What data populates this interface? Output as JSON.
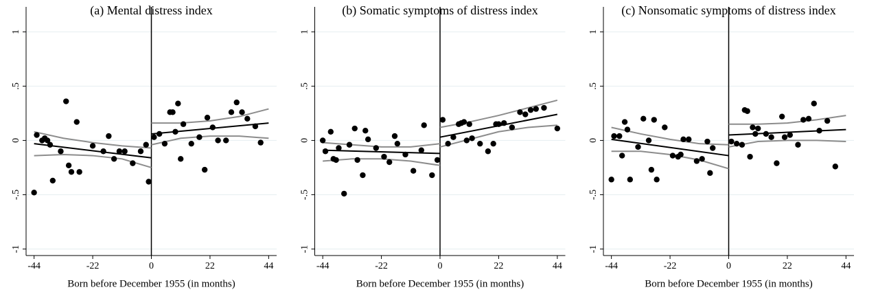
{
  "chart_data": [
    {
      "type": "scatter",
      "title": "(a) Mental distress index",
      "x_label": "Born before December 1955 (in months)",
      "color": "#000000",
      "ci_color": "#8c8c8c",
      "grid": true,
      "cutoff": 0,
      "xlim": [
        -47,
        47
      ],
      "ylim": [
        -1.06,
        1.23
      ],
      "xticks": [
        -44,
        -22,
        0,
        22,
        44
      ],
      "yticks": [
        -1,
        {
          "value": -0.5,
          "label": "-.5"
        },
        0,
        {
          "value": 0.5,
          "label": ".5"
        },
        1
      ],
      "x": [
        -44,
        -43,
        -41,
        -40,
        -39,
        -38,
        -37,
        -34,
        -32,
        -31,
        -30,
        -28,
        -27,
        -22,
        -18,
        -16,
        -14,
        -12,
        -10,
        -7,
        -4,
        -2,
        -1,
        1,
        3,
        5,
        7,
        8,
        9,
        10,
        11,
        12,
        15,
        18,
        20,
        21,
        23,
        25,
        28,
        30,
        32,
        34,
        36,
        39,
        41
      ],
      "values": [
        -0.48,
        0.05,
        0,
        0.02,
        0,
        -0.04,
        -0.37,
        -0.1,
        0.36,
        -0.23,
        -0.29,
        0.17,
        -0.29,
        -0.05,
        -0.1,
        0.04,
        -0.17,
        -0.1,
        -0.1,
        -0.21,
        -0.1,
        -0.04,
        -0.38,
        0.03,
        0.06,
        -0.03,
        0.26,
        0.26,
        0.08,
        0.34,
        -0.17,
        0.15,
        -0.03,
        0.03,
        -0.27,
        0.21,
        0.12,
        0,
        0,
        0.26,
        0.35,
        0.26,
        0.2,
        0.13,
        -0.02
      ],
      "fit_lines": [
        {
          "x": [
            -44,
            0
          ],
          "values": [
            -0.03,
            -0.16
          ]
        },
        {
          "x": [
            0,
            44
          ],
          "values": [
            0.06,
            0.16
          ]
        }
      ],
      "ci_bands": [
        {
          "x": [
            -44,
            -33,
            -22,
            -11,
            0
          ],
          "upper": [
            0.08,
            0.02,
            -0.02,
            -0.05,
            -0.07
          ],
          "lower": [
            -0.14,
            -0.13,
            -0.14,
            -0.17,
            -0.25
          ]
        },
        {
          "x": [
            0,
            11,
            22,
            33,
            44
          ],
          "upper": [
            0.16,
            0.16,
            0.18,
            0.22,
            0.29
          ],
          "lower": [
            -0.04,
            0.02,
            0.04,
            0.04,
            0.02
          ]
        }
      ]
    },
    {
      "type": "scatter",
      "title": "(b) Somatic symptoms of distress index",
      "x_label": "Born before December 1955 (in months)",
      "color": "#000000",
      "ci_color": "#8c8c8c",
      "grid": true,
      "cutoff": 0,
      "xlim": [
        -47,
        47
      ],
      "ylim": [
        -1.06,
        1.23
      ],
      "xticks": [
        -44,
        -22,
        0,
        22,
        44
      ],
      "yticks": [
        -1,
        {
          "value": -0.5,
          "label": "-.5"
        },
        0,
        {
          "value": 0.5,
          "label": ".5"
        },
        1
      ],
      "x": [
        -44,
        -43,
        -41,
        -40,
        -39,
        -38,
        -36,
        -34,
        -32,
        -31,
        -29,
        -28,
        -27,
        -24,
        -21,
        -19,
        -17,
        -16,
        -13,
        -10,
        -7,
        -6,
        -3,
        -1,
        1,
        3,
        5,
        7,
        8,
        9,
        10,
        11,
        12,
        15,
        18,
        20,
        21,
        22,
        24,
        27,
        30,
        32,
        34,
        36,
        39,
        44
      ],
      "values": [
        0,
        -0.1,
        0.08,
        -0.17,
        -0.18,
        -0.07,
        -0.49,
        -0.04,
        0.11,
        -0.18,
        -0.32,
        0.09,
        0.01,
        -0.07,
        -0.15,
        -0.2,
        0.04,
        -0.03,
        -0.13,
        -0.28,
        -0.09,
        0.14,
        -0.32,
        -0.18,
        0.19,
        -0.03,
        0.03,
        0.15,
        0.16,
        0.17,
        0,
        0.15,
        0.02,
        -0.03,
        -0.1,
        -0.03,
        0.15,
        0.15,
        0.16,
        0.12,
        0.26,
        0.24,
        0.28,
        0.29,
        0.3,
        0.11
      ],
      "fit_lines": [
        {
          "x": [
            -44,
            0
          ],
          "values": [
            -0.09,
            -0.12
          ]
        },
        {
          "x": [
            0,
            44
          ],
          "values": [
            0.03,
            0.24
          ]
        }
      ],
      "ci_bands": [
        {
          "x": [
            -44,
            -33,
            -22,
            -11,
            0
          ],
          "upper": [
            -0.02,
            -0.04,
            -0.06,
            -0.06,
            -0.03
          ],
          "lower": [
            -0.19,
            -0.17,
            -0.17,
            -0.19,
            -0.23
          ]
        },
        {
          "x": [
            0,
            11,
            22,
            33,
            44
          ],
          "upper": [
            0.12,
            0.17,
            0.23,
            0.3,
            0.37
          ],
          "lower": [
            -0.06,
            0.01,
            0.08,
            0.12,
            0.14
          ]
        }
      ]
    },
    {
      "type": "scatter",
      "title": "(c) Nonsomatic symptoms of distress index",
      "x_label": "Born before December 1955 (in months)",
      "color": "#000000",
      "ci_color": "#8c8c8c",
      "grid": true,
      "cutoff": 0,
      "xlim": [
        -47,
        47
      ],
      "ylim": [
        -1.06,
        1.23
      ],
      "xticks": [
        -44,
        -22,
        0,
        22,
        44
      ],
      "yticks": [
        -1,
        {
          "value": -0.5,
          "label": "-.5"
        },
        0,
        {
          "value": 0.5,
          "label": ".5"
        },
        1
      ],
      "x": [
        -44,
        -43,
        -41,
        -40,
        -39,
        -38,
        -37,
        -34,
        -32,
        -30,
        -29,
        -28,
        -27,
        -24,
        -21,
        -19,
        -18,
        -17,
        -15,
        -12,
        -10,
        -8,
        -7,
        -6,
        1,
        3,
        5,
        6,
        7,
        8,
        9,
        10,
        11,
        14,
        16,
        18,
        20,
        21,
        23,
        26,
        28,
        30,
        32,
        34,
        37,
        40
      ],
      "values": [
        -0.36,
        0.04,
        0.04,
        -0.14,
        0.17,
        0.1,
        -0.36,
        -0.06,
        0.2,
        0,
        -0.27,
        0.19,
        -0.36,
        0.12,
        -0.14,
        -0.15,
        -0.13,
        0.01,
        0.01,
        -0.19,
        -0.17,
        -0.01,
        -0.3,
        -0.07,
        -0.01,
        -0.03,
        -0.04,
        0.28,
        0.27,
        -0.15,
        0.12,
        0.06,
        0.11,
        0.06,
        0.03,
        -0.21,
        0.22,
        0.03,
        0.05,
        -0.04,
        0.19,
        0.2,
        0.34,
        0.09,
        0.18,
        -0.24
      ],
      "fit_lines": [
        {
          "x": [
            -44,
            0
          ],
          "values": [
            0.01,
            -0.14
          ]
        },
        {
          "x": [
            0,
            44
          ],
          "values": [
            0.05,
            0.1
          ]
        }
      ],
      "ci_bands": [
        {
          "x": [
            -44,
            -33,
            -22,
            -11,
            0
          ],
          "upper": [
            0.12,
            0.06,
            0.01,
            -0.03,
            -0.04
          ],
          "lower": [
            -0.1,
            -0.1,
            -0.13,
            -0.18,
            -0.26
          ]
        },
        {
          "x": [
            0,
            11,
            22,
            33,
            44
          ],
          "upper": [
            0.15,
            0.15,
            0.16,
            0.19,
            0.23
          ],
          "lower": [
            -0.06,
            -0.01,
            0,
            0,
            -0.01
          ]
        }
      ]
    }
  ]
}
